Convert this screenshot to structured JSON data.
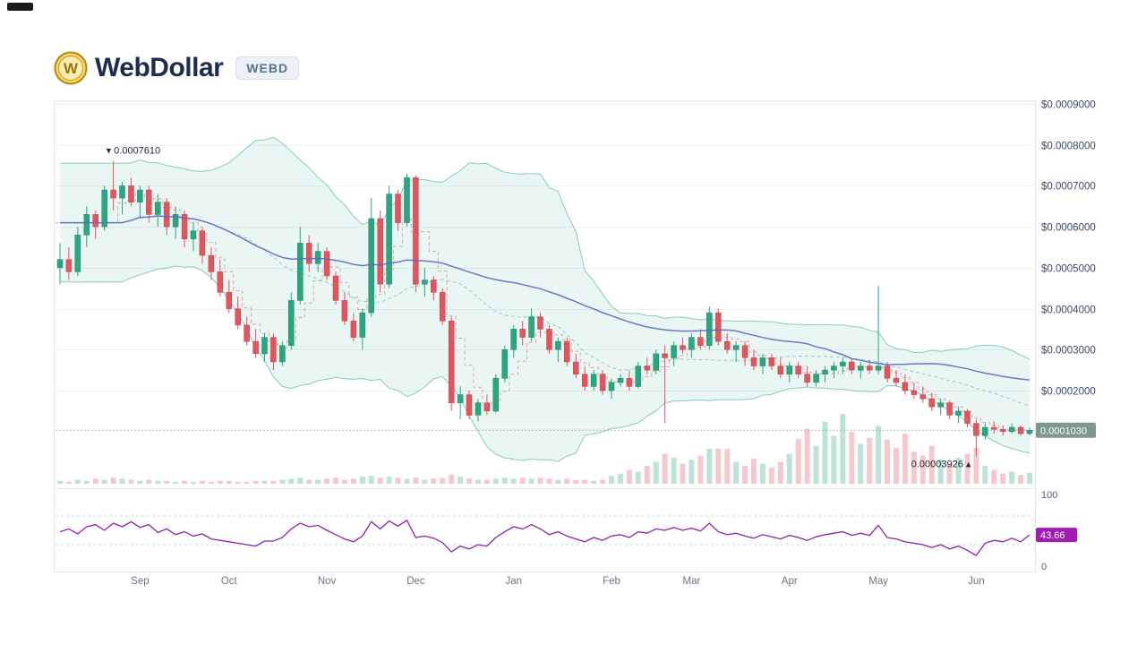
{
  "header": {
    "title": "WebDollar",
    "symbol_badge": "WEBD"
  },
  "colors": {
    "up": "#2aa780",
    "down": "#e0555e",
    "up_stroke": "#1e8464",
    "down_stroke": "#c04550",
    "band": "#2aa58f",
    "band_fill_opacity": 0.1,
    "mid_band": "#7fc7b6",
    "ma": "#5b6abf",
    "red_dash": "#d95560",
    "rsi": "#8e24aa",
    "rsi_badge": "#a31bb5",
    "rsi_guide": "#90caf9",
    "price_badge": "#7d988f",
    "grid": "#eef0f5",
    "frame": "#e2e6ee",
    "axis_text": "#3c4a66",
    "month_text": "#6b7686",
    "panel_text": "#555e70",
    "annotation": "#23293a"
  },
  "chart_data": {
    "type": "candlestick",
    "title": "WebDollar (WEBD) price with Bollinger Bands, moving average, volume and RSI",
    "price_scale": 1e-07,
    "y_axis": {
      "ticks": [
        {
          "label": "$0.0009000",
          "v": 9000
        },
        {
          "label": "$0.0008000",
          "v": 8000
        },
        {
          "label": "$0.0007000",
          "v": 7000
        },
        {
          "label": "$0.0006000",
          "v": 6000
        },
        {
          "label": "$0.0005000",
          "v": 5000
        },
        {
          "label": "$0.0004000",
          "v": 4000
        },
        {
          "label": "$0.0003000",
          "v": 3000
        },
        {
          "label": "$0.0002000",
          "v": 2000
        }
      ]
    },
    "x_axis": {
      "months": [
        {
          "label": "Sep",
          "i": 9
        },
        {
          "label": "Oct",
          "i": 19
        },
        {
          "label": "Nov",
          "i": 30
        },
        {
          "label": "Dec",
          "i": 40
        },
        {
          "label": "Jan",
          "i": 51
        },
        {
          "label": "Feb",
          "i": 62
        },
        {
          "label": "Mar",
          "i": 71
        },
        {
          "label": "Apr",
          "i": 82
        },
        {
          "label": "May",
          "i": 92
        },
        {
          "label": "Jun",
          "i": 103
        }
      ]
    },
    "annotations": {
      "high_label": "▾ 0.0007610",
      "low_label": "0.00003926 ▴",
      "current_price_label": "0.0001030",
      "current_price_value": 1030
    },
    "overlays": {
      "bollinger_period": 20,
      "ma_period": 50,
      "step_period": 5
    },
    "indicator_panel": {
      "name": "RSI",
      "range": [
        0,
        100
      ],
      "max_label": "100",
      "min_label": "0",
      "guides": [
        70,
        30
      ],
      "last_label": "43.66"
    },
    "ohlc": [
      [
        5000,
        5600,
        4600,
        5200
      ],
      [
        5200,
        5500,
        4700,
        4900
      ],
      [
        4900,
        6000,
        4800,
        5800
      ],
      [
        5800,
        6500,
        5500,
        6300
      ],
      [
        6300,
        6400,
        5700,
        6000
      ],
      [
        6000,
        7000,
        5900,
        6900
      ],
      [
        6900,
        7610,
        6400,
        6700
      ],
      [
        6700,
        7100,
        6300,
        7000
      ],
      [
        7000,
        7200,
        6500,
        6600
      ],
      [
        6600,
        7000,
        6200,
        6900
      ],
      [
        6900,
        7000,
        6100,
        6300
      ],
      [
        6300,
        6800,
        6000,
        6600
      ],
      [
        6600,
        6700,
        5800,
        6000
      ],
      [
        6000,
        6500,
        5700,
        6300
      ],
      [
        6300,
        6400,
        5500,
        5700
      ],
      [
        5700,
        6100,
        5400,
        5900
      ],
      [
        5900,
        6000,
        5100,
        5300
      ],
      [
        5300,
        5500,
        4700,
        4900
      ],
      [
        4900,
        5200,
        4300,
        4400
      ],
      [
        4400,
        4700,
        3900,
        4000
      ],
      [
        4000,
        4300,
        3500,
        3600
      ],
      [
        3600,
        3800,
        3100,
        3200
      ],
      [
        3200,
        3500,
        2800,
        2900
      ],
      [
        2900,
        3400,
        2700,
        3300
      ],
      [
        3300,
        3400,
        2500,
        2700
      ],
      [
        2700,
        3200,
        2600,
        3100
      ],
      [
        3100,
        4400,
        3000,
        4200
      ],
      [
        4200,
        6000,
        4100,
        5600
      ],
      [
        5600,
        5800,
        4900,
        5100
      ],
      [
        5100,
        5600,
        4900,
        5400
      ],
      [
        5400,
        5500,
        4700,
        4800
      ],
      [
        4800,
        4900,
        4100,
        4200
      ],
      [
        4200,
        4400,
        3600,
        3700
      ],
      [
        3700,
        3900,
        3200,
        3300
      ],
      [
        3300,
        4000,
        3000,
        3900
      ],
      [
        3900,
        6700,
        3800,
        6200
      ],
      [
        6200,
        6400,
        4400,
        4600
      ],
      [
        4600,
        7000,
        4500,
        6800
      ],
      [
        6800,
        6900,
        5900,
        6100
      ],
      [
        6100,
        7300,
        6000,
        7200
      ],
      [
        7200,
        7250,
        4400,
        4600
      ],
      [
        4600,
        5000,
        4300,
        4700
      ],
      [
        4700,
        4800,
        4200,
        4400
      ],
      [
        4400,
        4500,
        3600,
        3700
      ],
      [
        3700,
        3800,
        1500,
        1700
      ],
      [
        1700,
        2100,
        1300,
        1900
      ],
      [
        1900,
        2000,
        1300,
        1400
      ],
      [
        1400,
        1800,
        1250,
        1700
      ],
      [
        1700,
        1900,
        1400,
        1500
      ],
      [
        1500,
        2400,
        1450,
        2300
      ],
      [
        2300,
        3100,
        2200,
        3000
      ],
      [
        3000,
        3600,
        2800,
        3500
      ],
      [
        3500,
        3700,
        3100,
        3300
      ],
      [
        3300,
        4000,
        3200,
        3800
      ],
      [
        3800,
        3900,
        3300,
        3500
      ],
      [
        3500,
        3600,
        2900,
        3000
      ],
      [
        3000,
        3300,
        2700,
        3200
      ],
      [
        3200,
        3300,
        2600,
        2700
      ],
      [
        2700,
        2900,
        2300,
        2400
      ],
      [
        2400,
        2600,
        2000,
        2100
      ],
      [
        2100,
        2500,
        2000,
        2400
      ],
      [
        2400,
        2500,
        1900,
        2000
      ],
      [
        2000,
        2300,
        1800,
        2200
      ],
      [
        2200,
        2400,
        2100,
        2300
      ],
      [
        2300,
        2500,
        2000,
        2100
      ],
      [
        2100,
        2700,
        2050,
        2600
      ],
      [
        2600,
        2800,
        2400,
        2500
      ],
      [
        2500,
        3000,
        2400,
        2900
      ],
      [
        2900,
        3100,
        1200,
        2800
      ],
      [
        2800,
        3200,
        2600,
        3100
      ],
      [
        3100,
        3300,
        2900,
        3000
      ],
      [
        3000,
        3400,
        2800,
        3300
      ],
      [
        3300,
        3500,
        3000,
        3100
      ],
      [
        3100,
        4050,
        3000,
        3900
      ],
      [
        3900,
        4000,
        3100,
        3200
      ],
      [
        3200,
        3400,
        2900,
        3000
      ],
      [
        3000,
        3200,
        2700,
        3100
      ],
      [
        3100,
        3200,
        2600,
        2800
      ],
      [
        2800,
        3000,
        2500,
        2600
      ],
      [
        2600,
        2900,
        2400,
        2800
      ],
      [
        2800,
        2900,
        2500,
        2600
      ],
      [
        2600,
        2800,
        2300,
        2400
      ],
      [
        2400,
        2700,
        2200,
        2600
      ],
      [
        2600,
        2700,
        2300,
        2400
      ],
      [
        2400,
        2600,
        2100,
        2200
      ],
      [
        2200,
        2500,
        2100,
        2400
      ],
      [
        2400,
        2600,
        2200,
        2500
      ],
      [
        2500,
        2700,
        2300,
        2600
      ],
      [
        2600,
        2800,
        2400,
        2700
      ],
      [
        2700,
        2800,
        2400,
        2500
      ],
      [
        2500,
        2700,
        2300,
        2600
      ],
      [
        2600,
        2750,
        2400,
        2500
      ],
      [
        2500,
        4550,
        2400,
        2600
      ],
      [
        2600,
        2700,
        2200,
        2300
      ],
      [
        2300,
        2500,
        2100,
        2200
      ],
      [
        2200,
        2400,
        1900,
        2000
      ],
      [
        2000,
        2200,
        1800,
        1900
      ],
      [
        1900,
        2100,
        1700,
        1800
      ],
      [
        1800,
        1950,
        1500,
        1600
      ],
      [
        1600,
        1800,
        1400,
        1700
      ],
      [
        1700,
        1750,
        1300,
        1400
      ],
      [
        1400,
        1600,
        1200,
        1500
      ],
      [
        1500,
        1550,
        1100,
        1200
      ],
      [
        1200,
        1300,
        393,
        900
      ],
      [
        900,
        1200,
        800,
        1100
      ],
      [
        1100,
        1250,
        950,
        1050
      ],
      [
        1050,
        1150,
        900,
        1000
      ],
      [
        1000,
        1200,
        950,
        1100
      ],
      [
        1100,
        1150,
        900,
        950
      ],
      [
        950,
        1100,
        900,
        1030
      ]
    ],
    "volume": [
      3,
      2,
      4,
      3,
      5,
      4,
      6,
      5,
      4,
      3,
      4,
      3,
      3,
      2,
      3,
      2,
      3,
      2,
      3,
      3,
      2,
      2,
      3,
      3,
      3,
      4,
      5,
      6,
      4,
      4,
      5,
      6,
      4,
      5,
      7,
      8,
      6,
      7,
      6,
      5,
      6,
      4,
      5,
      6,
      9,
      7,
      5,
      4,
      4,
      5,
      6,
      5,
      6,
      5,
      6,
      5,
      4,
      5,
      4,
      4,
      3,
      4,
      8,
      10,
      14,
      12,
      18,
      22,
      30,
      26,
      20,
      24,
      28,
      35,
      35,
      35,
      22,
      18,
      25,
      20,
      16,
      22,
      30,
      45,
      55,
      38,
      62,
      48,
      70,
      52,
      40,
      46,
      58,
      44,
      36,
      50,
      32,
      28,
      38,
      24,
      20,
      26,
      30,
      36,
      18,
      14,
      10,
      12,
      9,
      11
    ],
    "rsi": [
      48,
      52,
      45,
      55,
      58,
      50,
      60,
      55,
      62,
      54,
      58,
      47,
      52,
      44,
      48,
      42,
      45,
      38,
      36,
      34,
      32,
      30,
      28,
      35,
      35,
      40,
      52,
      60,
      55,
      57,
      50,
      44,
      38,
      34,
      42,
      62,
      52,
      63,
      56,
      64,
      40,
      42,
      39,
      33,
      20,
      28,
      24,
      30,
      28,
      40,
      48,
      55,
      52,
      58,
      52,
      44,
      48,
      42,
      38,
      34,
      40,
      36,
      42,
      44,
      40,
      48,
      46,
      52,
      50,
      54,
      50,
      53,
      49,
      60,
      48,
      44,
      46,
      42,
      39,
      44,
      41,
      38,
      43,
      40,
      36,
      41,
      44,
      46,
      48,
      43,
      46,
      43,
      57,
      40,
      38,
      34,
      32,
      30,
      26,
      30,
      24,
      28,
      22,
      15,
      32,
      36,
      34,
      39,
      34,
      43.66
    ]
  }
}
